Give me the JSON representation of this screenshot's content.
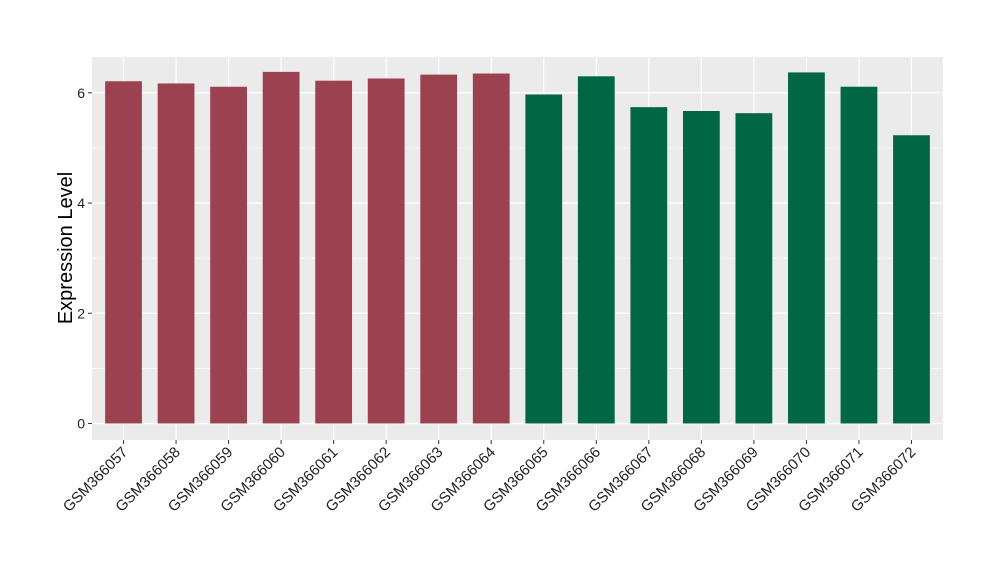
{
  "chart_data": {
    "type": "bar",
    "categories": [
      "GSM366057",
      "GSM366058",
      "GSM366059",
      "GSM366060",
      "GSM366061",
      "GSM366062",
      "GSM366063",
      "GSM366064",
      "GSM366065",
      "GSM366066",
      "GSM366067",
      "GSM366068",
      "GSM366069",
      "GSM366070",
      "GSM366071",
      "GSM366072"
    ],
    "values": [
      6.21,
      6.17,
      6.11,
      6.38,
      6.22,
      6.26,
      6.33,
      6.35,
      5.97,
      6.3,
      5.74,
      5.67,
      5.63,
      6.37,
      6.11,
      5.23
    ],
    "bar_colors": [
      "#9b4150",
      "#9b4150",
      "#9b4150",
      "#9b4150",
      "#9b4150",
      "#9b4150",
      "#9b4150",
      "#9b4150",
      "#006644",
      "#006644",
      "#006644",
      "#006644",
      "#006644",
      "#006644",
      "#006644",
      "#006644"
    ],
    "title": "",
    "xlabel": "",
    "ylabel": "Expression Level",
    "ylim": [
      -0.3,
      6.65
    ],
    "yticks": [
      0,
      2,
      4,
      6
    ],
    "ytick_labels": [
      "0",
      "2",
      "4",
      "6"
    ],
    "grid": true,
    "panel_background": "#ebebeb",
    "grid_color": "#ffffff"
  }
}
